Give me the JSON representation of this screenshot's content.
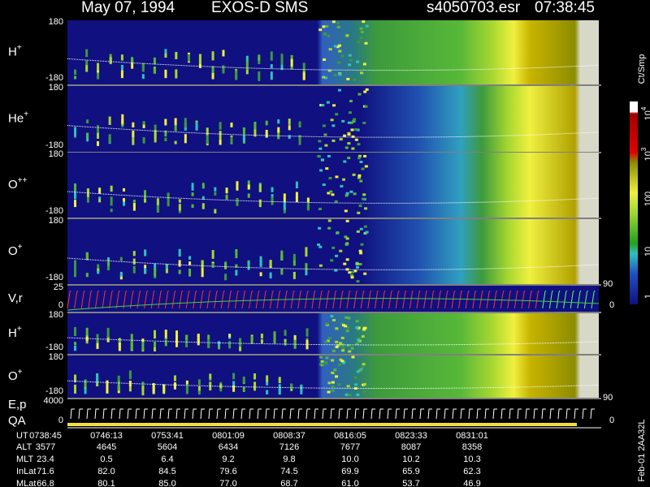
{
  "header": {
    "date": "May 07, 1994",
    "instrument": "EXOS-D SMS",
    "file": "s4050703.esr",
    "time": "07:38:45"
  },
  "panels": [
    {
      "label": "H",
      "sup": "+",
      "ticks": [
        "180",
        "-180"
      ]
    },
    {
      "label": "He",
      "sup": "+",
      "ticks": [
        "180",
        "-180"
      ]
    },
    {
      "label": "O",
      "sup": "++",
      "ticks": [
        "180",
        "-180"
      ]
    },
    {
      "label": "O",
      "sup": "+",
      "ticks": [
        "180",
        "-180"
      ]
    },
    {
      "label": "V,r",
      "ticks": [
        "25",
        "0"
      ],
      "right_ticks": [
        "90",
        "0"
      ]
    },
    {
      "label": "H",
      "sup": "+",
      "ticks": [
        "180",
        "-180"
      ]
    },
    {
      "label": "O",
      "sup": "+",
      "ticks": [
        "180",
        "-180"
      ]
    },
    {
      "label": "E,p",
      "label2": "QA",
      "ticks": [
        "4000",
        "0"
      ],
      "right_ticks": [
        "90",
        "0"
      ]
    }
  ],
  "colorbar": {
    "unit": "Ct/Smp",
    "ticks": [
      {
        "base": "10",
        "exp": "4"
      },
      {
        "base": "10",
        "exp": "3"
      },
      {
        "base": "100"
      },
      {
        "base": "10"
      },
      {
        "base": "1"
      }
    ]
  },
  "table": {
    "row_labels": [
      "UT",
      "ALT",
      "MLT",
      "InLat",
      "MLat"
    ],
    "rows": [
      [
        "0738:45",
        "0746:13",
        "0753:41",
        "0801:09",
        "0808:37",
        "0816:05",
        "0823:33",
        "0831:01"
      ],
      [
        "3577",
        "4645",
        "5604",
        "6434",
        "7126",
        "7677",
        "8087",
        "8358"
      ],
      [
        "23.4",
        "0.5",
        "6.4",
        "9.2",
        "9.8",
        "10.0",
        "10.2",
        "10.3"
      ],
      [
        "71.6",
        "82.0",
        "84.5",
        "79.6",
        "74.5",
        "69.9",
        "65.9",
        "62.3"
      ],
      [
        "66.8",
        "80.1",
        "85.0",
        "77.0",
        "68.7",
        "61.0",
        "53.7",
        "46.9"
      ]
    ]
  },
  "footer": "Feb-01 2AA32L"
}
